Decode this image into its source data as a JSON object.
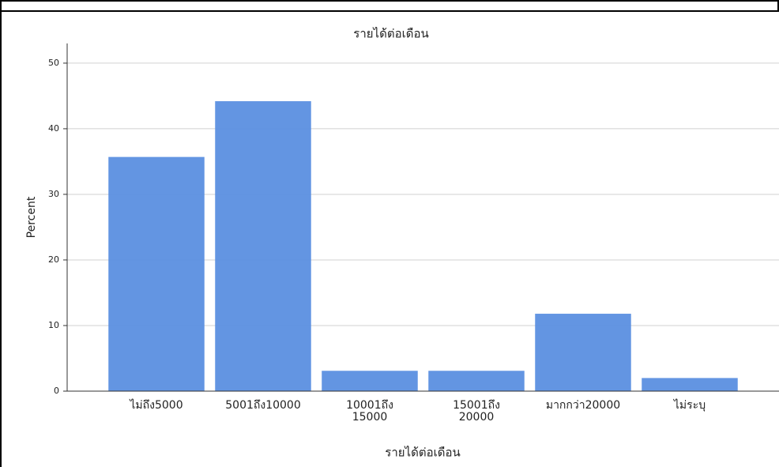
{
  "chart_data": {
    "type": "bar",
    "title": "รายได้ต่อเดือน",
    "x_label": "รายได้ต่อเดือน",
    "y_label": "Percent",
    "categories": [
      "ไม่ถึง5000",
      "5001ถึง10000",
      "10001ถึง\n15000",
      "15001ถึง\n20000",
      "มากกว่า20000",
      "ไม่ระบุ"
    ],
    "values": [
      35.7,
      44.2,
      3.1,
      3.1,
      11.8,
      2.0
    ],
    "color": "#5b8fe0",
    "ylim": [
      0,
      53
    ],
    "yticks": [
      0,
      10,
      20,
      30,
      40,
      50
    ],
    "grid": true
  }
}
